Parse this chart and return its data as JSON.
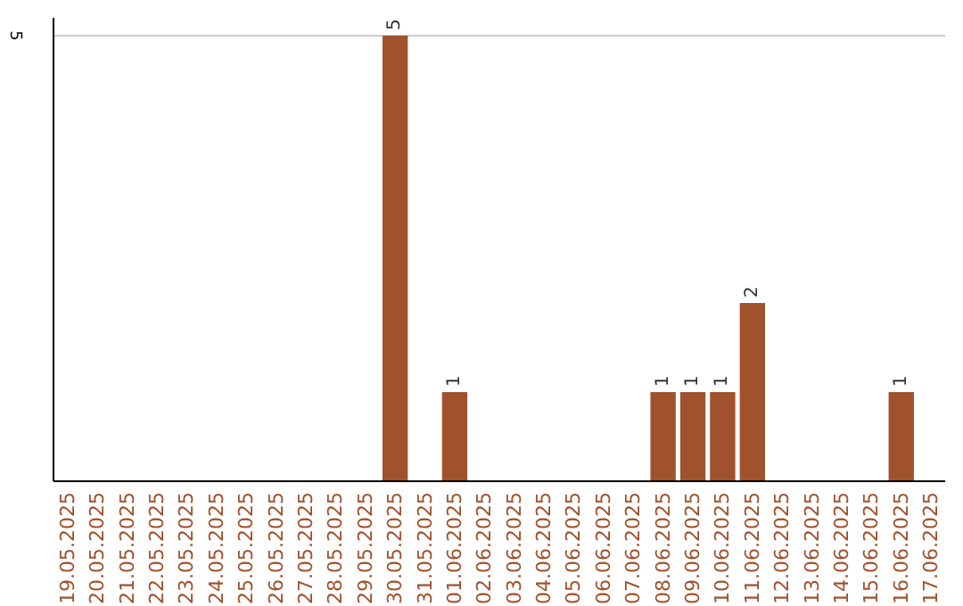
{
  "chart_data": {
    "type": "bar",
    "categories": [
      "19.05.2025",
      "20.05.2025",
      "21.05.2025",
      "22.05.2025",
      "23.05.2025",
      "24.05.2025",
      "25.05.2025",
      "26.05.2025",
      "27.05.2025",
      "28.05.2025",
      "29.05.2025",
      "30.05.2025",
      "31.05.2025",
      "01.06.2025",
      "02.06.2025",
      "03.06.2025",
      "04.06.2025",
      "05.06.2025",
      "06.06.2025",
      "07.06.2025",
      "08.06.2025",
      "09.06.2025",
      "10.06.2025",
      "11.06.2025",
      "12.06.2025",
      "13.06.2025",
      "14.06.2025",
      "15.06.2025",
      "16.06.2025",
      "17.06.2025"
    ],
    "values": [
      0,
      0,
      0,
      0,
      0,
      0,
      0,
      0,
      0,
      0,
      0,
      5,
      0,
      1,
      0,
      0,
      0,
      0,
      0,
      0,
      1,
      1,
      1,
      2,
      0,
      0,
      0,
      0,
      1,
      0
    ],
    "value_labels": [
      null,
      null,
      null,
      null,
      null,
      null,
      null,
      null,
      null,
      null,
      null,
      "5",
      null,
      "1",
      null,
      null,
      null,
      null,
      null,
      null,
      "1",
      "1",
      "1",
      "2",
      null,
      null,
      null,
      null,
      "1",
      null
    ],
    "color": "#a0522d",
    "ylim": [
      0,
      5.2
    ],
    "yticks": [
      5
    ],
    "grid": "y"
  }
}
